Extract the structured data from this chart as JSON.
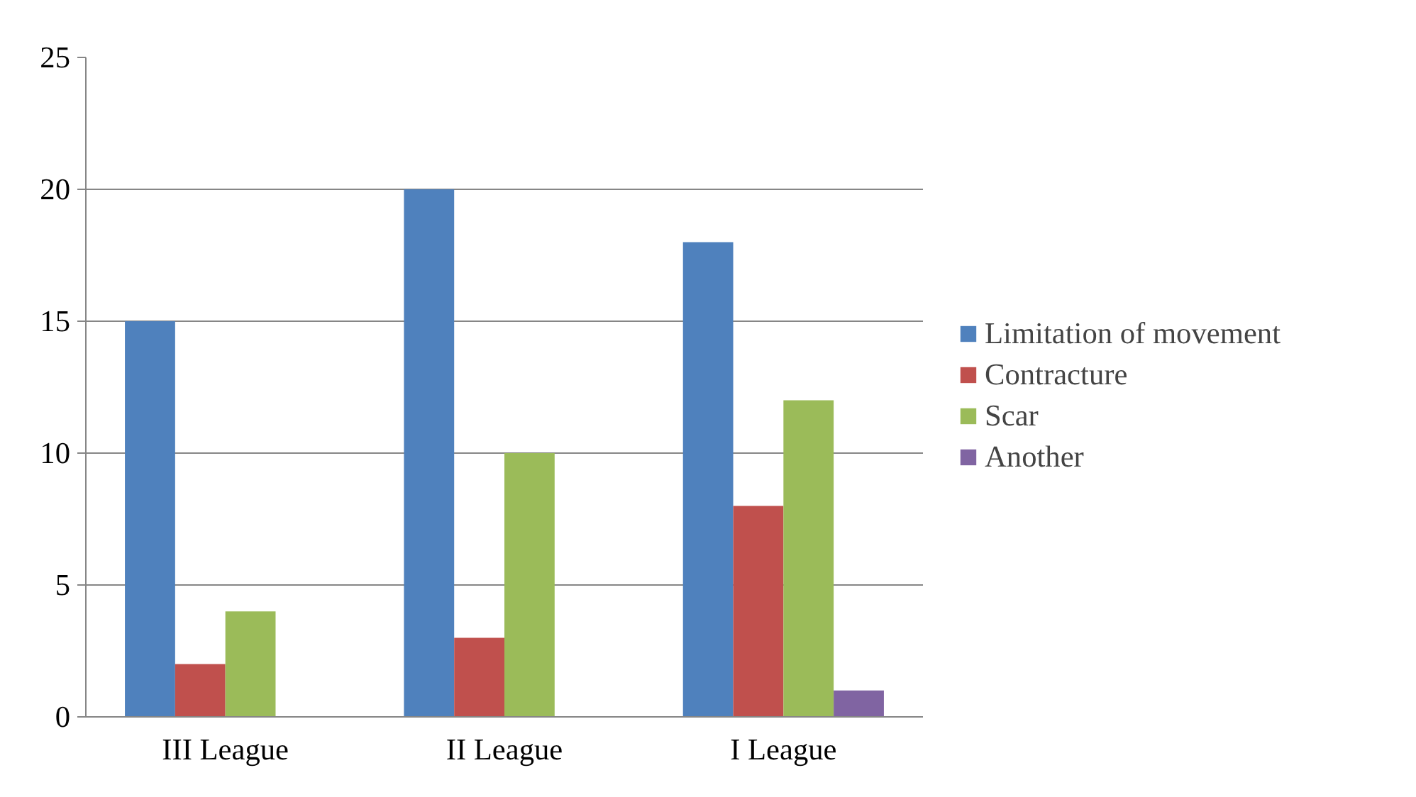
{
  "chart_data": {
    "type": "bar",
    "categories": [
      "III League",
      "II League",
      "I League"
    ],
    "series": [
      {
        "name": "Limitation of movement",
        "color": "#4f81bd",
        "values": [
          15,
          20,
          18
        ]
      },
      {
        "name": "Contracture",
        "color": "#c0504d",
        "values": [
          2,
          3,
          8
        ]
      },
      {
        "name": "Scar",
        "color": "#9bbb59",
        "values": [
          4,
          10,
          12
        ]
      },
      {
        "name": "Another",
        "color": "#8064a2",
        "values": [
          0,
          0,
          1
        ]
      }
    ],
    "ylim": [
      0,
      25
    ],
    "yticks": [
      0,
      5,
      10,
      15,
      20,
      25
    ],
    "grid": "y",
    "legend": "right"
  }
}
